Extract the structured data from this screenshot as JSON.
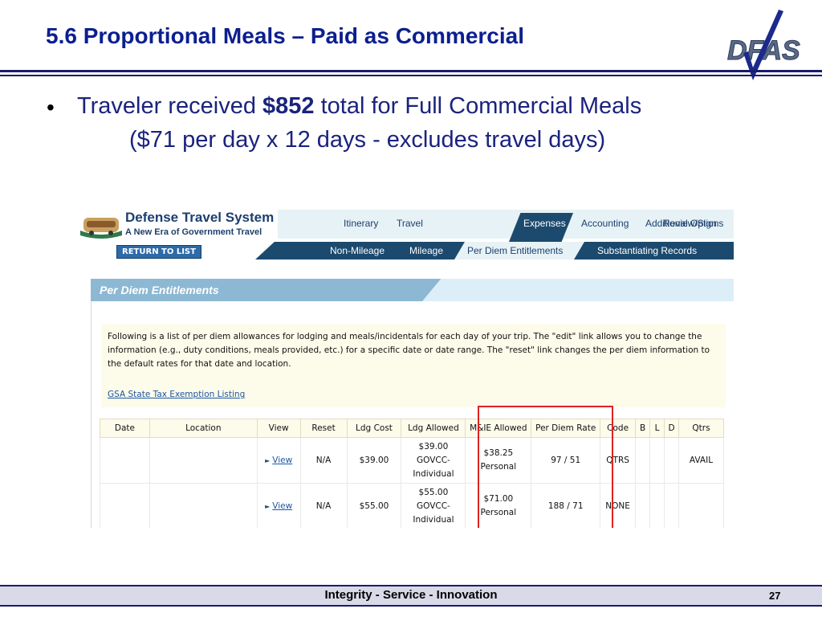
{
  "slide": {
    "title": "5.6 Proportional Meals – Paid as Commercial",
    "logo_text": "DFAS",
    "bullet": {
      "line1_pre": "Traveler received ",
      "line1_amount": "$852",
      "line1_post": " total for Full Commercial Meals",
      "line2": "($71 per day x  12 days - excludes travel days)"
    },
    "footer": "Integrity - Service - Innovation",
    "page_number": "27"
  },
  "dts": {
    "title": "Defense Travel System",
    "subtitle": "A New Era of Government Travel",
    "top_tabs": [
      "Itinerary",
      "Travel",
      "Expenses",
      "Accounting",
      "Additional Options",
      "Review/Sign"
    ],
    "active_top_tab": "Expenses",
    "sub_tabs": [
      "Non-Mileage",
      "Mileage",
      "Per Diem Entitlements",
      "Substantiating Records"
    ],
    "active_sub_tab": "Per Diem Entitlements",
    "return_button": "RETURN TO LIST",
    "section_title": "Per Diem Entitlements",
    "info_text": "Following is a list of per diem allowances for lodging and meals/incidentals for each day of your trip. The \"edit\" link allows you to change the information (e.g., duty conditions, meals provided, etc.) for a specific date or date range. The \"reset\" link changes the per diem information to the default rates for that date and location.",
    "gsa_link": "GSA State Tax Exemption Listing",
    "table": {
      "headers": [
        "Date",
        "Location",
        "View",
        "Reset",
        "Ldg Cost",
        "Ldg Allowed",
        "M&IE Allowed",
        "Per Diem Rate",
        "Code",
        "B",
        "L",
        "D",
        "Qtrs"
      ],
      "rows": [
        {
          "date": "",
          "location": "",
          "view": "View",
          "reset": "N/A",
          "ldg_cost": "$39.00",
          "ldg_allowed_1": "$39.00",
          "ldg_allowed_2": "GOVCC-",
          "ldg_allowed_3": "Individual",
          "mie_1": "$38.25",
          "mie_2": "Personal",
          "rate": "97 / 51",
          "code": "QTRS",
          "b": "",
          "l": "",
          "d": "",
          "qtrs": "AVAIL"
        },
        {
          "date": "",
          "location": "",
          "view": "View",
          "reset": "N/A",
          "ldg_cost": "$55.00",
          "ldg_allowed_1": "$55.00",
          "ldg_allowed_2": "GOVCC-",
          "ldg_allowed_3": "Individual",
          "mie_1": "$71.00",
          "mie_2": "Personal",
          "rate": "188 / 71",
          "code": "NONE",
          "b": "",
          "l": "",
          "d": "",
          "qtrs": ""
        }
      ]
    }
  },
  "colors": {
    "title_blue": "#0b1f8f",
    "dts_navy": "#1c4a6e",
    "highlight_red": "#dd2222"
  }
}
